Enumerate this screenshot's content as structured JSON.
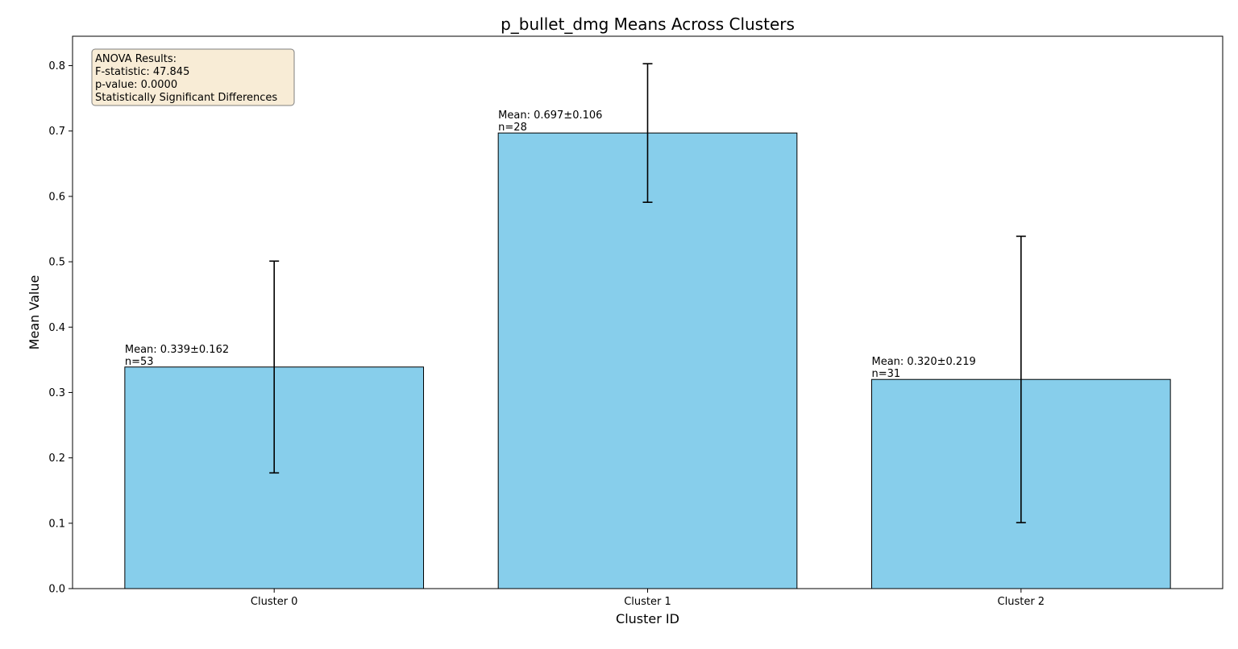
{
  "chart_data": {
    "type": "bar",
    "title": "p_bullet_dmg Means Across Clusters",
    "xlabel": "Cluster ID",
    "ylabel": "Mean Value",
    "ylim": [
      0.0,
      0.845
    ],
    "yticks": [
      0.0,
      0.1,
      0.2,
      0.3,
      0.4,
      0.5,
      0.6,
      0.7,
      0.8
    ],
    "ytick_labels": [
      "0.0",
      "0.1",
      "0.2",
      "0.3",
      "0.4",
      "0.5",
      "0.6",
      "0.7",
      "0.8"
    ],
    "categories": [
      "Cluster 0",
      "Cluster 1",
      "Cluster 2"
    ],
    "values": [
      0.339,
      0.697,
      0.32
    ],
    "errors": [
      0.162,
      0.106,
      0.219
    ],
    "counts": [
      53,
      28,
      31
    ],
    "bar_labels": [
      {
        "mean": "Mean: 0.339±0.162",
        "n": "n=53"
      },
      {
        "mean": "Mean: 0.697±0.106",
        "n": "n=28"
      },
      {
        "mean": "Mean: 0.320±0.219",
        "n": "n=31"
      }
    ],
    "annotation": {
      "lines": [
        "ANOVA Results:",
        "F-statistic: 47.845",
        "p-value: 0.0000",
        "Statistically Significant Differences"
      ],
      "placement": "top-left"
    },
    "colors": {
      "bar_fill": "#87ceeb",
      "bar_edge": "#000000",
      "error_bar": "#000000",
      "annotation_fill": "#f8ecd6",
      "annotation_edge": "#7f7f7f"
    },
    "grid": false,
    "legend": "none"
  }
}
